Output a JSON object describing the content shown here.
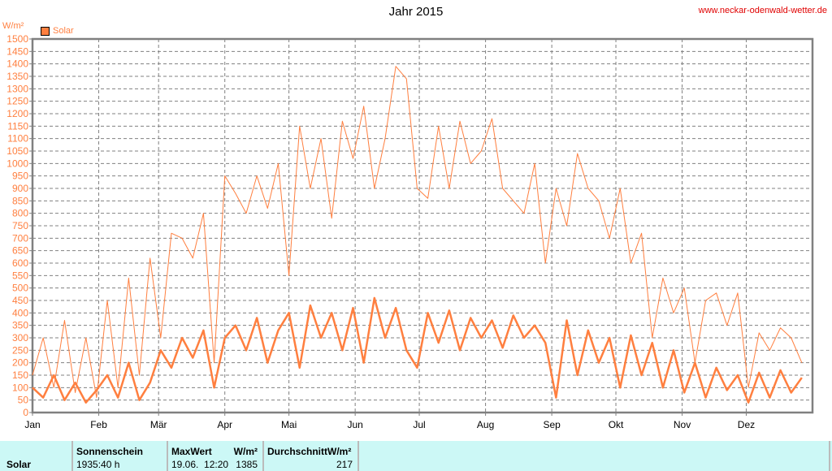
{
  "title": "Jahr 2015",
  "site_url": "www.neckar-odenwald-wetter.de",
  "colors": {
    "series": "#ff7f3f",
    "grid": "#808080",
    "url": "#e00000",
    "table_bg": "#ccf8f6"
  },
  "chart_data": {
    "type": "line",
    "title": "Jahr 2015",
    "ylabel": "W/m²",
    "ylim": [
      0,
      1500
    ],
    "ytick_step": 50,
    "legend": [
      "Solar"
    ],
    "legend_placement": "top-left",
    "grid": true,
    "months": [
      "Jan",
      "Feb",
      "Mär",
      "Apr",
      "Mai",
      "Jun",
      "Jul",
      "Aug",
      "Sep",
      "Okt",
      "Nov",
      "Dez"
    ],
    "month_start_days": [
      0,
      31,
      59,
      90,
      120,
      151,
      181,
      212,
      243,
      273,
      304,
      334
    ],
    "days_in_year": 365,
    "x_step_days": 5,
    "series": [
      {
        "name": "Solar max",
        "values": [
          150,
          300,
          100,
          370,
          80,
          300,
          60,
          450,
          100,
          540,
          150,
          620,
          300,
          720,
          700,
          620,
          800,
          200,
          950,
          880,
          800,
          950,
          820,
          1000,
          550,
          1150,
          900,
          1100,
          780,
          1170,
          1020,
          1230,
          900,
          1100,
          1390,
          1340,
          900,
          860,
          1150,
          900,
          1170,
          1000,
          1050,
          1180,
          900,
          850,
          800,
          1000,
          600,
          900,
          750,
          1040,
          900,
          850,
          700,
          900,
          600,
          720,
          300,
          540,
          400,
          500,
          200,
          450,
          480,
          350,
          480,
          100,
          320,
          250,
          340,
          300,
          200
        ]
      },
      {
        "name": "Solar avg",
        "values": [
          100,
          60,
          150,
          50,
          120,
          40,
          90,
          150,
          60,
          200,
          50,
          120,
          250,
          180,
          300,
          220,
          330,
          100,
          300,
          350,
          250,
          380,
          200,
          330,
          400,
          180,
          430,
          300,
          400,
          250,
          420,
          200,
          460,
          300,
          420,
          250,
          180,
          400,
          280,
          410,
          250,
          380,
          300,
          370,
          260,
          390,
          300,
          350,
          280,
          60,
          370,
          150,
          330,
          200,
          300,
          100,
          310,
          150,
          280,
          100,
          250,
          80,
          200,
          60,
          180,
          90,
          150,
          40,
          160,
          60,
          170,
          80,
          140
        ]
      }
    ]
  },
  "table": {
    "row_label": "Solar",
    "sunshine_header": "Sonnenschein",
    "sunshine_value": "1935:40 h",
    "max_header": "MaxWert",
    "max_unit": "W/m²",
    "max_date": "19.06.  12:20",
    "max_value": "1385",
    "avg_header": "DurchschnittW/m²",
    "avg_value": "217"
  }
}
